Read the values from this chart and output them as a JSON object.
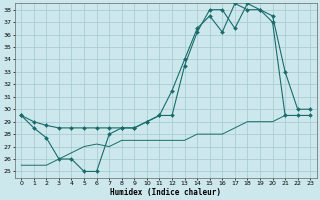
{
  "xlabel": "Humidex (Indice chaleur)",
  "bg_color": "#cce8ec",
  "grid_color": "#aacdd4",
  "line_color": "#1a6b6b",
  "xlim": [
    -0.5,
    23.5
  ],
  "ylim": [
    24.5,
    38.5
  ],
  "xticks": [
    0,
    1,
    2,
    3,
    4,
    5,
    6,
    7,
    8,
    9,
    10,
    11,
    12,
    13,
    14,
    15,
    16,
    17,
    18,
    19,
    20,
    21,
    22,
    23
  ],
  "yticks": [
    25,
    26,
    27,
    28,
    29,
    30,
    31,
    32,
    33,
    34,
    35,
    36,
    37,
    38
  ],
  "line1_x": [
    0,
    1,
    2,
    3,
    4,
    5,
    6,
    7,
    8,
    9,
    10,
    11,
    12,
    13,
    14,
    15,
    16,
    17,
    18,
    19,
    20,
    21,
    22,
    23
  ],
  "line1_y": [
    29.5,
    28.5,
    27.7,
    26.0,
    26.0,
    25.0,
    25.0,
    28.0,
    28.5,
    28.5,
    29.0,
    29.5,
    29.5,
    33.5,
    36.2,
    38.0,
    38.0,
    36.5,
    38.5,
    38.0,
    37.5,
    33.0,
    30.0,
    30.0
  ],
  "line2_x": [
    0,
    1,
    2,
    3,
    4,
    5,
    6,
    7,
    8,
    9,
    10,
    11,
    12,
    13,
    14,
    15,
    16,
    17,
    18,
    19,
    20,
    21,
    22,
    23
  ],
  "line2_y": [
    29.5,
    29.0,
    28.7,
    28.5,
    28.5,
    28.5,
    28.5,
    28.5,
    28.5,
    28.5,
    29.0,
    29.5,
    31.5,
    34.0,
    36.5,
    37.5,
    36.2,
    38.5,
    38.0,
    38.0,
    37.0,
    29.5,
    29.5,
    29.5
  ],
  "line3_x": [
    0,
    1,
    2,
    3,
    4,
    5,
    6,
    7,
    8,
    9,
    10,
    11,
    12,
    13,
    14,
    15,
    16,
    17,
    18,
    19,
    20,
    21,
    22,
    23
  ],
  "line3_y": [
    25.5,
    25.5,
    25.5,
    26.0,
    26.5,
    27.0,
    27.2,
    27.0,
    27.5,
    27.5,
    27.5,
    27.5,
    27.5,
    27.5,
    28.0,
    28.0,
    28.0,
    28.5,
    29.0,
    29.0,
    29.0,
    29.5,
    29.5,
    29.5
  ]
}
